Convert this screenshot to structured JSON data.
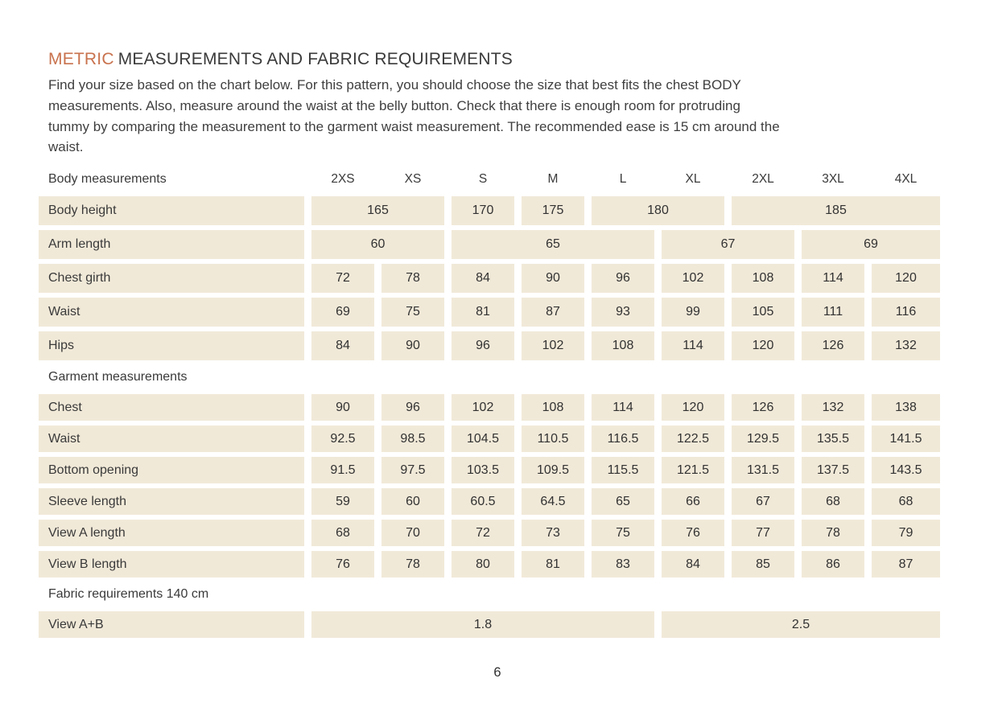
{
  "header": {
    "title_accent": "METRIC",
    "title_rest": "MEASUREMENTS AND FABRIC REQUIREMENTS"
  },
  "intro": {
    "lines": [
      "Find your size based on the chart below. For this pattern, you should choose the size that best fits the chest BODY",
      "measurements. Also, measure around the waist at the belly button. Check that there is enough room for protruding",
      "tummy by comparing the measurement to the garment waist measurement. The recommended ease is 15 cm around the",
      "waist."
    ]
  },
  "table": {
    "header_label": "Body measurements",
    "size_columns": [
      "2XS",
      "XS",
      "S",
      "M",
      "L",
      "XL",
      "2XL",
      "3XL",
      "4XL"
    ],
    "sections": [
      {
        "title": "",
        "rows": [
          {
            "label": "Body height",
            "cells": [
              {
                "v": "165",
                "span": 2
              },
              {
                "v": "170",
                "span": 1
              },
              {
                "v": "175",
                "span": 1
              },
              {
                "v": "180",
                "span": 2
              },
              {
                "v": "185",
                "span": 3
              }
            ]
          },
          {
            "label": "Arm length",
            "cells": [
              {
                "v": "60",
                "span": 2
              },
              {
                "v": "65",
                "span": 3
              },
              {
                "v": "67",
                "span": 2
              },
              {
                "v": "69",
                "span": 2
              }
            ]
          },
          {
            "label": "Chest girth",
            "cells": [
              {
                "v": "72",
                "span": 1
              },
              {
                "v": "78",
                "span": 1
              },
              {
                "v": "84",
                "span": 1
              },
              {
                "v": "90",
                "span": 1
              },
              {
                "v": "96",
                "span": 1
              },
              {
                "v": "102",
                "span": 1
              },
              {
                "v": "108",
                "span": 1
              },
              {
                "v": "114",
                "span": 1
              },
              {
                "v": "120",
                "span": 1
              }
            ]
          },
          {
            "label": "Waist",
            "cells": [
              {
                "v": "69",
                "span": 1
              },
              {
                "v": "75",
                "span": 1
              },
              {
                "v": "81",
                "span": 1
              },
              {
                "v": "87",
                "span": 1
              },
              {
                "v": "93",
                "span": 1
              },
              {
                "v": "99",
                "span": 1
              },
              {
                "v": "105",
                "span": 1
              },
              {
                "v": "111",
                "span": 1
              },
              {
                "v": "116",
                "span": 1
              }
            ]
          },
          {
            "label": "Hips",
            "cells": [
              {
                "v": "84",
                "span": 1
              },
              {
                "v": "90",
                "span": 1
              },
              {
                "v": "96",
                "span": 1
              },
              {
                "v": "102",
                "span": 1
              },
              {
                "v": "108",
                "span": 1
              },
              {
                "v": "114",
                "span": 1
              },
              {
                "v": "120",
                "span": 1
              },
              {
                "v": "126",
                "span": 1
              },
              {
                "v": "132",
                "span": 1
              }
            ]
          }
        ]
      },
      {
        "title": "Garment measurements",
        "rows": [
          {
            "label": "Chest",
            "cells": [
              {
                "v": "90",
                "span": 1
              },
              {
                "v": "96",
                "span": 1
              },
              {
                "v": "102",
                "span": 1
              },
              {
                "v": "108",
                "span": 1
              },
              {
                "v": "114",
                "span": 1
              },
              {
                "v": "120",
                "span": 1
              },
              {
                "v": "126",
                "span": 1
              },
              {
                "v": "132",
                "span": 1
              },
              {
                "v": "138",
                "span": 1
              }
            ]
          },
          {
            "label": "Waist",
            "cells": [
              {
                "v": "92.5",
                "span": 1
              },
              {
                "v": "98.5",
                "span": 1
              },
              {
                "v": "104.5",
                "span": 1
              },
              {
                "v": "110.5",
                "span": 1
              },
              {
                "v": "116.5",
                "span": 1
              },
              {
                "v": "122.5",
                "span": 1
              },
              {
                "v": "129.5",
                "span": 1
              },
              {
                "v": "135.5",
                "span": 1
              },
              {
                "v": "141.5",
                "span": 1
              }
            ]
          },
          {
            "label": "Bottom opening",
            "cells": [
              {
                "v": "91.5",
                "span": 1
              },
              {
                "v": "97.5",
                "span": 1
              },
              {
                "v": "103.5",
                "span": 1
              },
              {
                "v": "109.5",
                "span": 1
              },
              {
                "v": "115.5",
                "span": 1
              },
              {
                "v": "121.5",
                "span": 1
              },
              {
                "v": "131.5",
                "span": 1
              },
              {
                "v": "137.5",
                "span": 1
              },
              {
                "v": "143.5",
                "span": 1
              }
            ]
          },
          {
            "label": "Sleeve length",
            "cells": [
              {
                "v": "59",
                "span": 1
              },
              {
                "v": "60",
                "span": 1
              },
              {
                "v": "60.5",
                "span": 1
              },
              {
                "v": "64.5",
                "span": 1
              },
              {
                "v": "65",
                "span": 1
              },
              {
                "v": "66",
                "span": 1
              },
              {
                "v": "67",
                "span": 1
              },
              {
                "v": "68",
                "span": 1
              },
              {
                "v": "68",
                "span": 1
              }
            ]
          },
          {
            "label": "View A length",
            "cells": [
              {
                "v": "68",
                "span": 1
              },
              {
                "v": "70",
                "span": 1
              },
              {
                "v": "72",
                "span": 1
              },
              {
                "v": "73",
                "span": 1
              },
              {
                "v": "75",
                "span": 1
              },
              {
                "v": "76",
                "span": 1
              },
              {
                "v": "77",
                "span": 1
              },
              {
                "v": "78",
                "span": 1
              },
              {
                "v": "79",
                "span": 1
              }
            ]
          },
          {
            "label": "View B length",
            "cells": [
              {
                "v": "76",
                "span": 1
              },
              {
                "v": "78",
                "span": 1
              },
              {
                "v": "80",
                "span": 1
              },
              {
                "v": "81",
                "span": 1
              },
              {
                "v": "83",
                "span": 1
              },
              {
                "v": "84",
                "span": 1
              },
              {
                "v": "85",
                "span": 1
              },
              {
                "v": "86",
                "span": 1
              },
              {
                "v": "87",
                "span": 1
              }
            ]
          }
        ]
      },
      {
        "title": "Fabric requirements 140 cm",
        "rows": [
          {
            "label": "View A+B",
            "cells": [
              {
                "v": "1.8",
                "span": 5
              },
              {
                "v": "2.5",
                "span": 4
              }
            ]
          }
        ]
      }
    ]
  },
  "footer": {
    "page_number": "6"
  },
  "colors": {
    "accent": "#c8724d",
    "cell_background": "#f1e9d8",
    "text": "#3c3c3c"
  }
}
